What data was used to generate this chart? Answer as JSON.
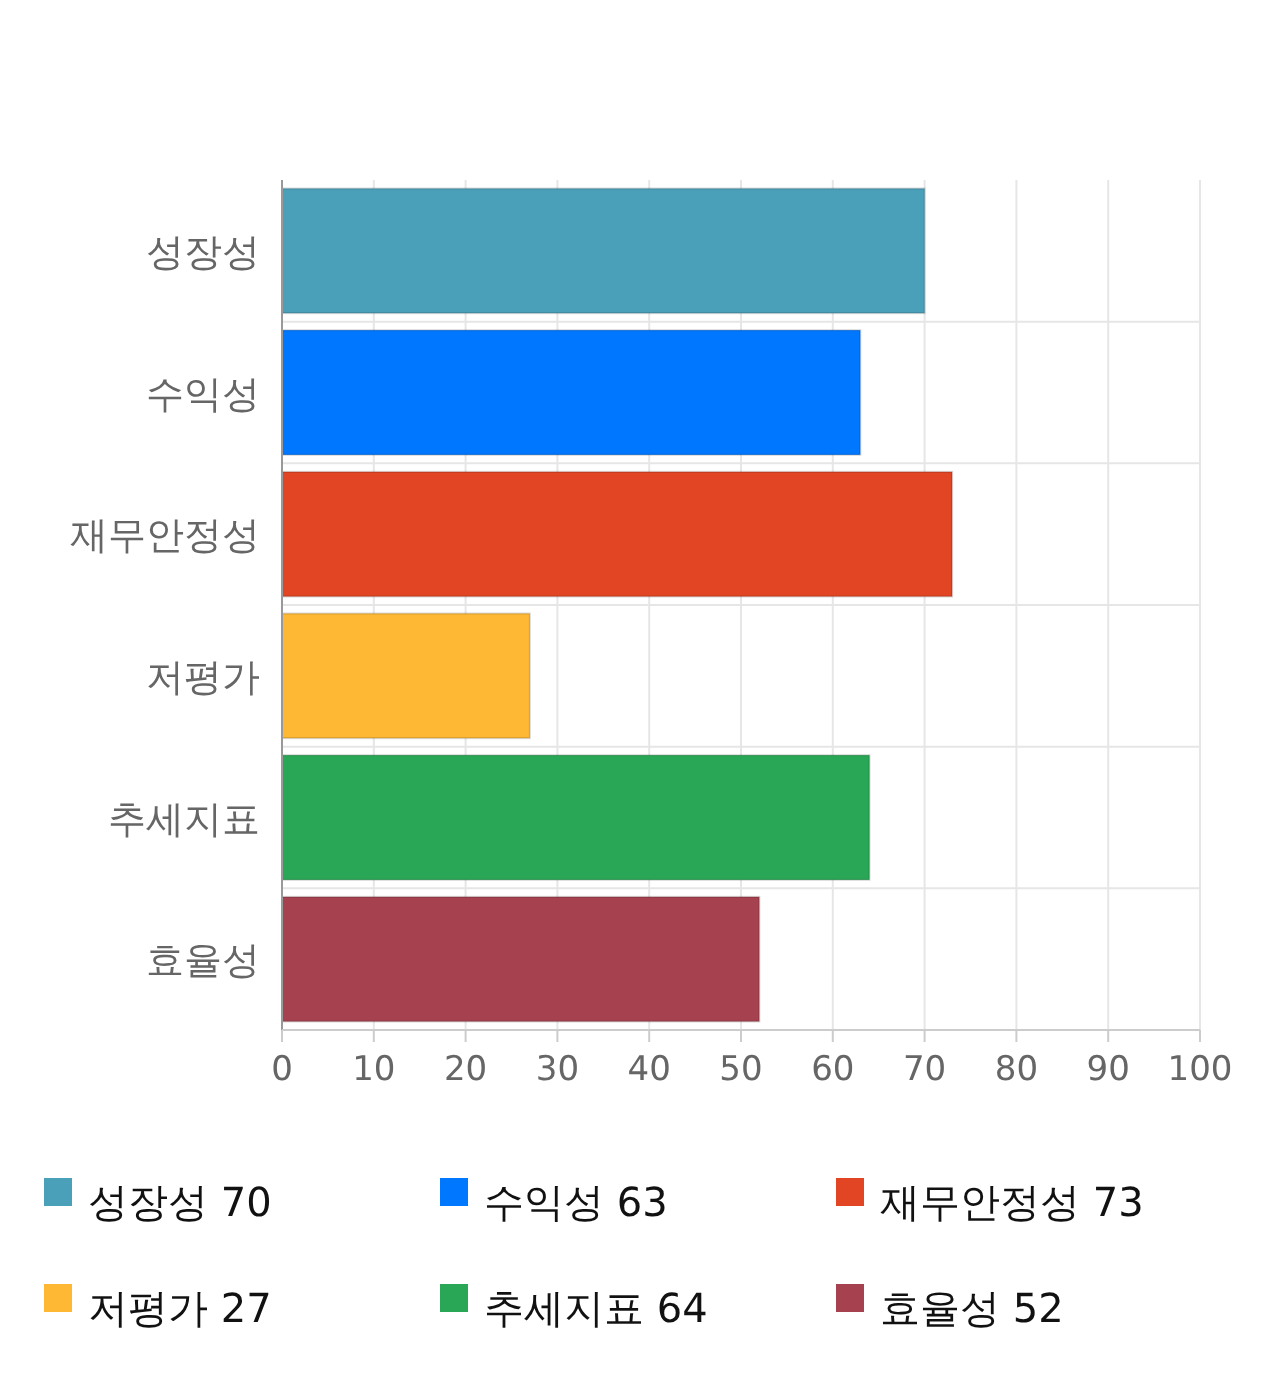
{
  "chart_data": {
    "type": "bar",
    "orientation": "horizontal",
    "stacked": true,
    "categories": [
      "성장성",
      "수익성",
      "재무안정성",
      "저평가",
      "추세지표",
      "효율성"
    ],
    "series": [
      {
        "name": "성장성 70",
        "color": "#4aa0b9",
        "values": [
          70,
          null,
          null,
          null,
          null,
          null
        ]
      },
      {
        "name": "수익성 63",
        "color": "#0077ff",
        "values": [
          null,
          63,
          null,
          null,
          null,
          null
        ]
      },
      {
        "name": "재무안정성 73",
        "color": "#e14524",
        "values": [
          null,
          null,
          73,
          null,
          null,
          null
        ]
      },
      {
        "name": "저평가 27",
        "color": "#ffb833",
        "values": [
          null,
          null,
          null,
          27,
          null,
          null
        ]
      },
      {
        "name": "추세지표 64",
        "color": "#29a756",
        "values": [
          null,
          null,
          null,
          null,
          64,
          null
        ]
      },
      {
        "name": "효율성 52",
        "color": "#a6424f",
        "values": [
          null,
          null,
          null,
          null,
          null,
          52
        ]
      }
    ],
    "xlim": [
      0,
      100
    ],
    "xticks": [
      0,
      10,
      20,
      30,
      40,
      50,
      60,
      70,
      80,
      90,
      100
    ],
    "grid": true,
    "legend": "bottom"
  }
}
